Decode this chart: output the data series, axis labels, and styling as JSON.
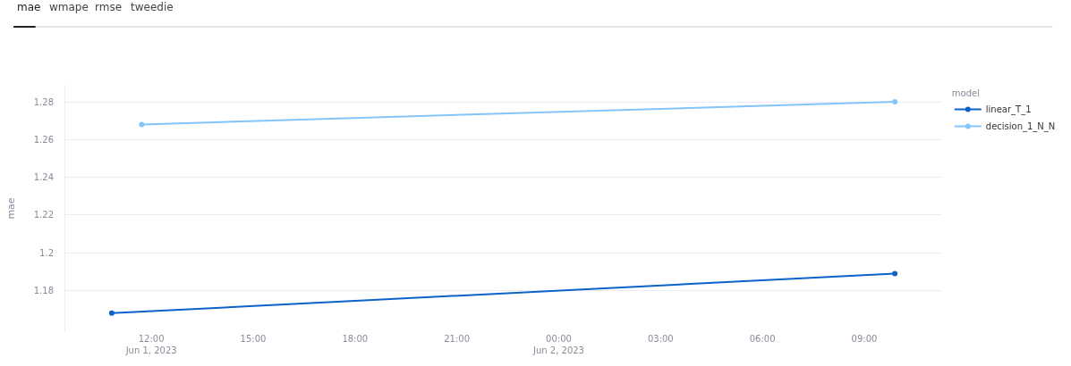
{
  "chart_data": {
    "type": "line",
    "annotations": [
      "mae",
      "wmape",
      "rmse",
      "tweedie"
    ],
    "ylabel": "mae",
    "legend_title": "model",
    "legend": "top right",
    "marker": "circle",
    "line_style": "solid",
    "grid": "y",
    "xlim": [
      "2023-06-01T09:28",
      "2023-06-02T11:16"
    ],
    "xticks": [
      {
        "value": "2023-06-01T12:00",
        "label": "12:00\nJun 1, 2023"
      },
      {
        "value": "2023-06-01T15:00",
        "label": "15:00"
      },
      {
        "value": "2023-06-01T18:00",
        "label": "18:00"
      },
      {
        "value": "2023-06-01T21:00",
        "label": "21:00"
      },
      {
        "value": "2023-06-02T00:00",
        "label": "00:00\nJun 2, 2023"
      },
      {
        "value": "2023-06-02T03:00",
        "label": "03:00"
      },
      {
        "value": "2023-06-02T06:00",
        "label": "06:00"
      },
      {
        "value": "2023-06-02T09:00",
        "label": "09:00"
      }
    ],
    "ylim": [
      1.158,
      1.289
    ],
    "yticks": [
      1.18,
      1.2,
      1.22,
      1.24,
      1.26,
      1.28
    ],
    "series": [
      {
        "name": "linear_T_1",
        "color": "#0b63c9",
        "x": [
          "2023-06-01T10:50",
          "2023-06-02T09:54"
        ],
        "values": [
          1.168,
          1.189
        ]
      },
      {
        "name": "decision_1_N_N",
        "color": "#83c5fa",
        "x": [
          "2023-06-01T11:43",
          "2023-06-02T09:54"
        ],
        "values": [
          1.268,
          1.28
        ]
      }
    ]
  }
}
